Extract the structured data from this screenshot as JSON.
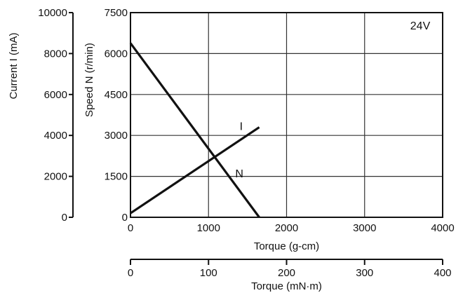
{
  "chart_data": {
    "type": "line",
    "annotation": "24V",
    "x_primary": {
      "label": "Torque (g-cm)",
      "range": [
        0,
        4000
      ],
      "ticks": [
        "0",
        "1000",
        "2000",
        "3000",
        "4000"
      ]
    },
    "x_secondary": {
      "label": "Torque (mN·m)",
      "range": [
        0,
        400
      ],
      "ticks": [
        "0",
        "100",
        "200",
        "300",
        "400"
      ]
    },
    "y_speed": {
      "label": "Speed N (r/min)",
      "range": [
        0,
        7500
      ],
      "ticks": [
        "0",
        "1500",
        "3000",
        "4500",
        "6000",
        "7500"
      ]
    },
    "y_current": {
      "label": "Current I (mA)",
      "range": [
        0,
        10000
      ],
      "ticks": [
        "0",
        "2000",
        "4000",
        "6000",
        "8000",
        "10000"
      ]
    },
    "grid": true,
    "series": [
      {
        "name": "N",
        "axis": "speed",
        "points": [
          [
            0,
            6380
          ],
          [
            1650,
            0
          ]
        ]
      },
      {
        "name": "I",
        "axis": "current",
        "points": [
          [
            0,
            200
          ],
          [
            1650,
            4400
          ]
        ]
      }
    ]
  }
}
